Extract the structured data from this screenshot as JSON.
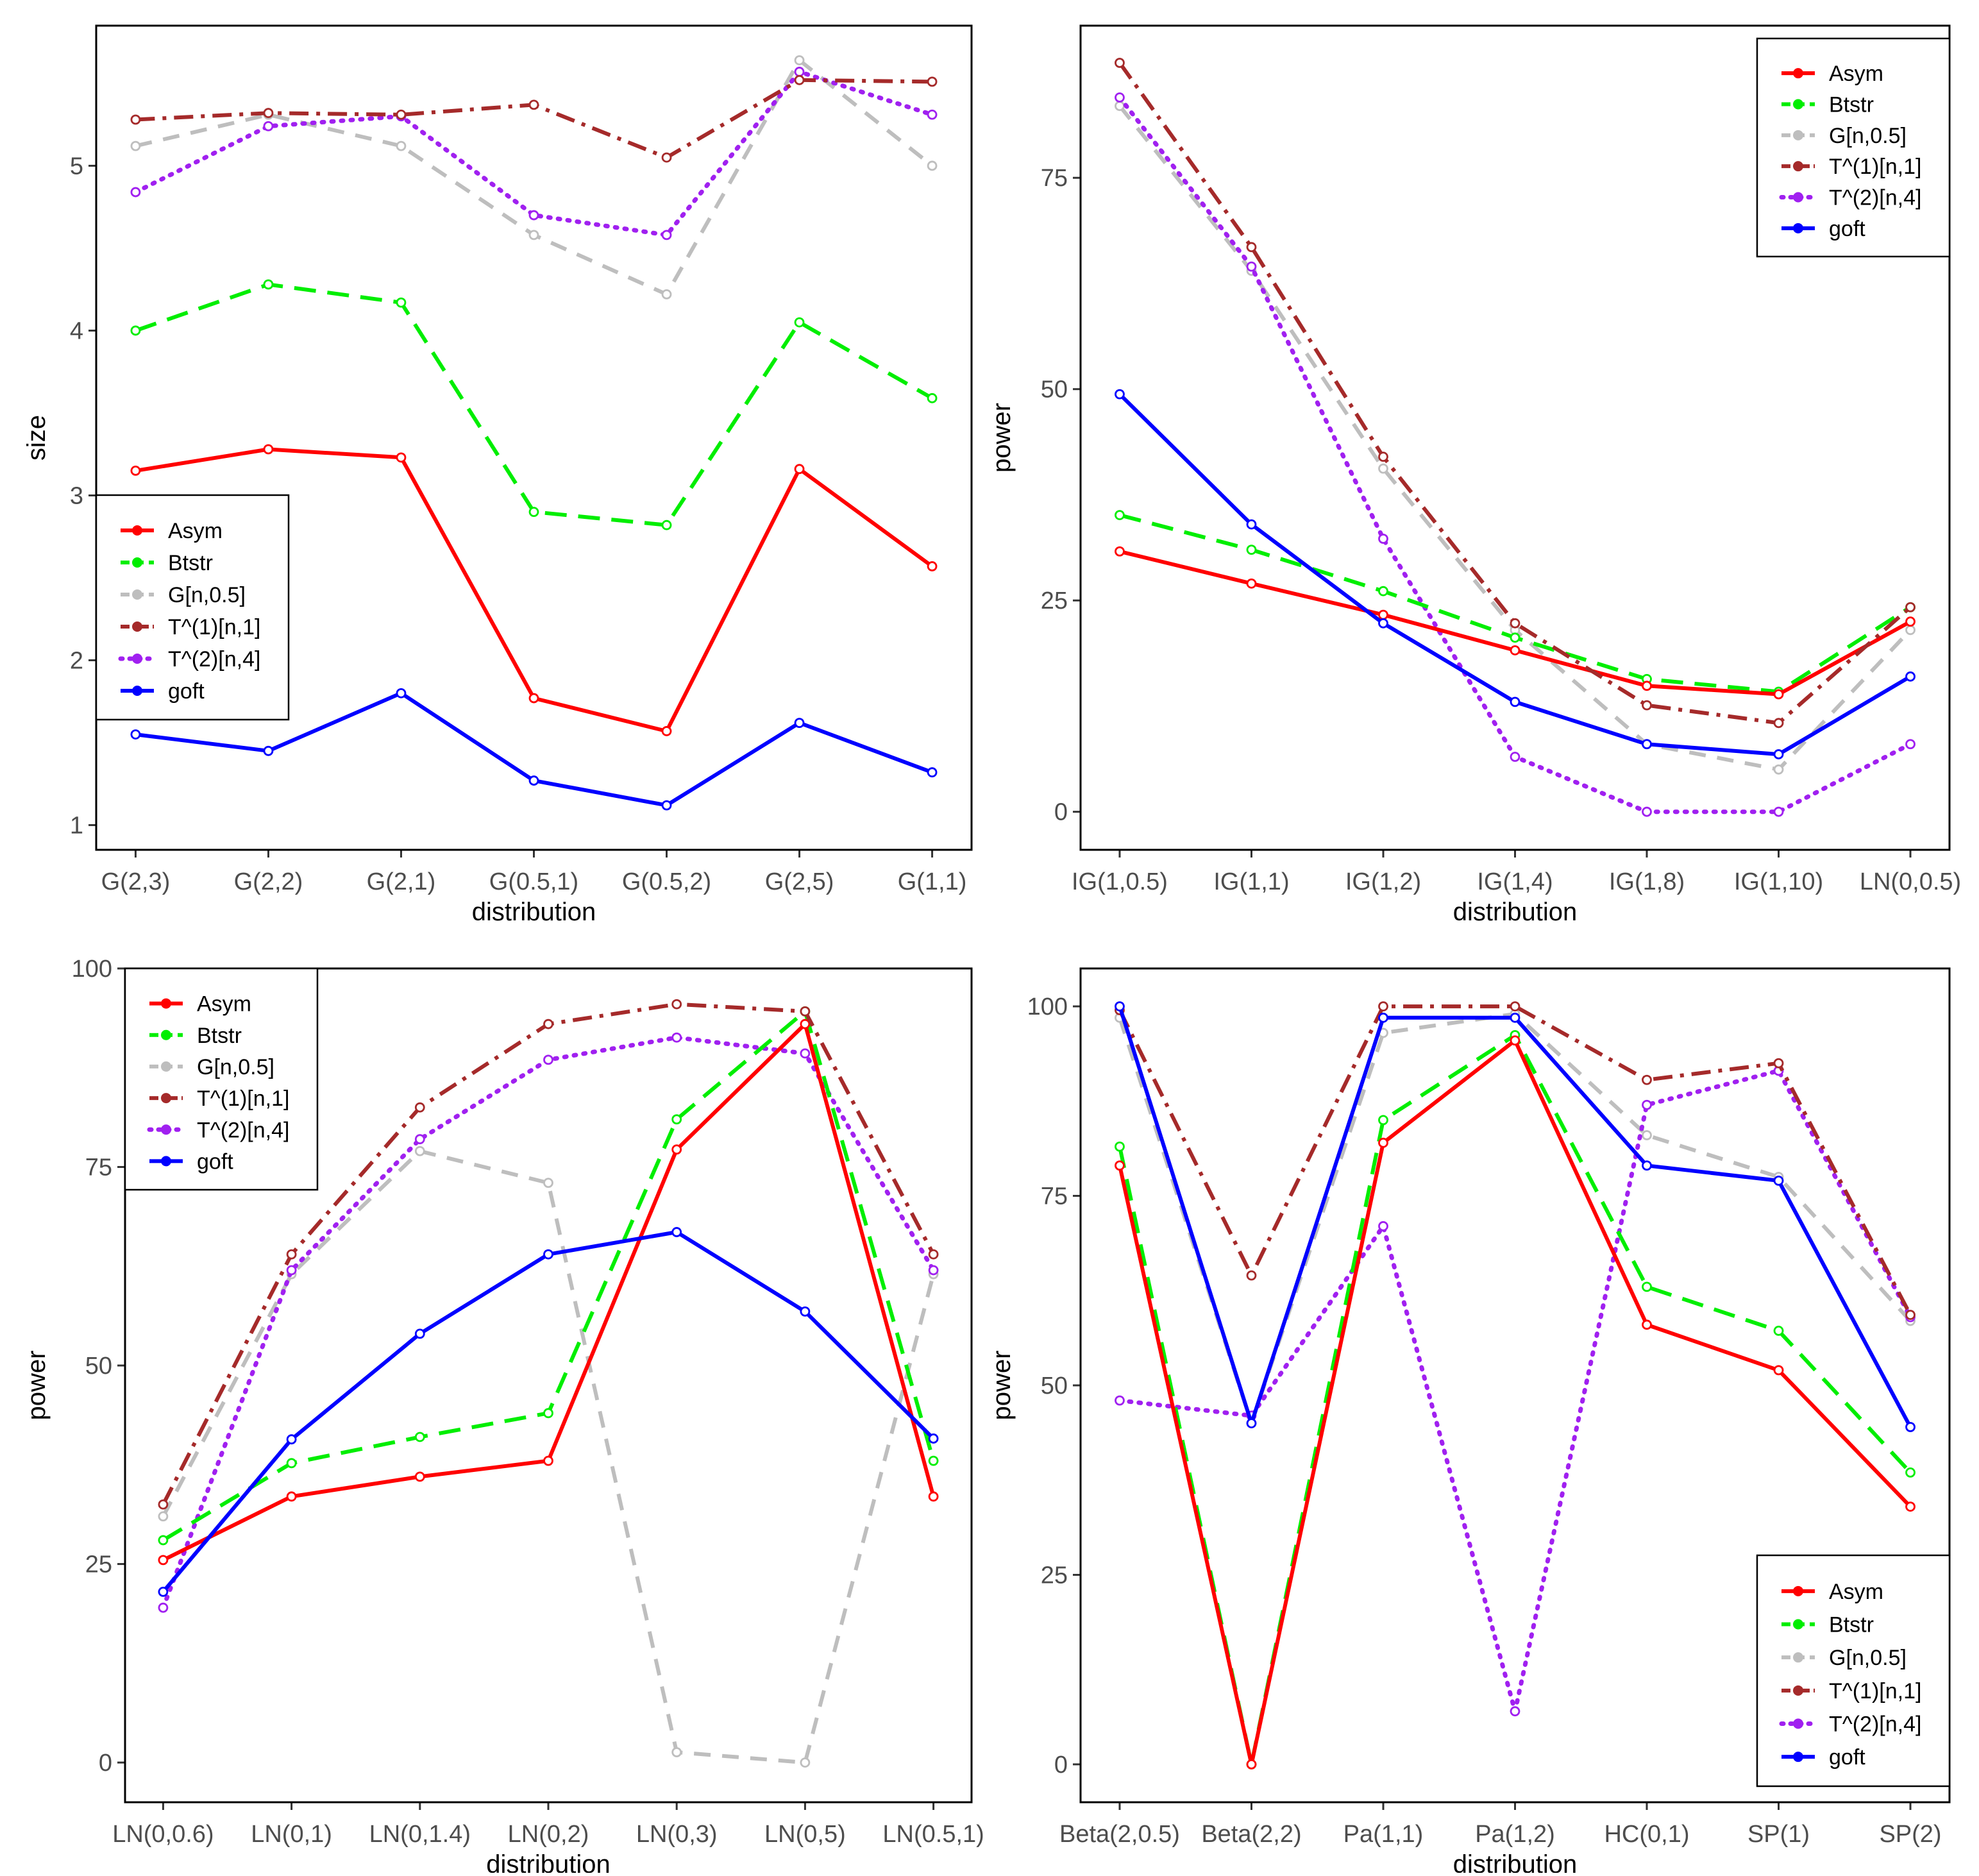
{
  "colors": {
    "Asym": "#ff0000",
    "Btstr": "#00ee00",
    "G[n,0.5]": "#bebebe",
    "T^(1)[n,1]": "#a52a2a",
    "T^(2)[n,4]": "#a020f0",
    "goft": "#0000ff"
  },
  "chart_data": [
    {
      "type": "line",
      "title": "",
      "xlabel": "distribution",
      "ylabel": "size",
      "categories": [
        "G(2,3)",
        "G(2,2)",
        "G(2,1)",
        "G(0.5,1)",
        "G(0.5,2)",
        "G(2,5)",
        "G(1,1)"
      ],
      "ylim": [
        0.85,
        5.85
      ],
      "yticks": [
        1,
        2,
        3,
        4,
        5
      ],
      "legend": "middle-left",
      "series": [
        {
          "name": "Asym",
          "values": [
            3.15,
            3.28,
            3.23,
            1.77,
            1.57,
            3.16,
            2.57
          ]
        },
        {
          "name": "Btstr",
          "values": [
            4.0,
            4.28,
            4.17,
            2.9,
            2.82,
            4.05,
            3.59
          ]
        },
        {
          "name": "G[n,0.5]",
          "values": [
            5.12,
            5.31,
            5.12,
            4.58,
            4.22,
            5.64,
            5.0
          ]
        },
        {
          "name": "T^(1)[n,1]",
          "values": [
            5.28,
            5.32,
            5.31,
            5.37,
            5.05,
            5.52,
            5.51
          ]
        },
        {
          "name": "T^(2)[n,4]",
          "values": [
            4.84,
            5.24,
            5.3,
            4.7,
            4.58,
            5.57,
            5.31
          ]
        },
        {
          "name": "goft",
          "values": [
            1.55,
            1.45,
            1.8,
            1.27,
            1.12,
            1.62,
            1.32
          ]
        }
      ]
    },
    {
      "type": "line",
      "title": "",
      "xlabel": "distribution",
      "ylabel": "power",
      "categories": [
        "IG(1,0.5)",
        "IG(1,1)",
        "IG(1,2)",
        "IG(1,4)",
        "IG(1,8)",
        "IG(1,10)",
        "LN(0,0.5)"
      ],
      "ylim": [
        -4.5,
        93
      ],
      "yticks": [
        0,
        25,
        50,
        75
      ],
      "legend": "top-right",
      "series": [
        {
          "name": "Asym",
          "values": [
            30.8,
            27.0,
            23.3,
            19.1,
            14.9,
            13.9,
            22.5
          ]
        },
        {
          "name": "Btstr",
          "values": [
            35.1,
            31.0,
            26.1,
            20.6,
            15.7,
            14.2,
            24.2
          ]
        },
        {
          "name": "G[n,0.5]",
          "values": [
            83.5,
            64.0,
            40.6,
            21.5,
            8.0,
            5.0,
            21.5
          ]
        },
        {
          "name": "T^(1)[n,1]",
          "values": [
            88.6,
            66.8,
            42.0,
            22.3,
            12.6,
            10.5,
            24.2
          ]
        },
        {
          "name": "T^(2)[n,4]",
          "values": [
            84.5,
            64.5,
            32.3,
            6.5,
            0.0,
            0.0,
            8.0
          ]
        },
        {
          "name": "goft",
          "values": [
            49.4,
            34.0,
            22.3,
            13.0,
            8.0,
            6.8,
            16.0
          ]
        }
      ]
    },
    {
      "type": "line",
      "title": "",
      "xlabel": "distribution",
      "ylabel": "power",
      "categories": [
        "LN(0,0.6)",
        "LN(0,1)",
        "LN(0,1.4)",
        "LN(0,2)",
        "LN(0,3)",
        "LN(0,5)",
        "LN(0.5,1)"
      ],
      "ylim": [
        -5,
        100
      ],
      "yticks": [
        0,
        25,
        50,
        75,
        100
      ],
      "legend": "top-left",
      "series": [
        {
          "name": "Asym",
          "values": [
            25.5,
            33.5,
            36.0,
            38.0,
            77.2,
            93.0,
            33.5
          ]
        },
        {
          "name": "Btstr",
          "values": [
            28.0,
            37.7,
            41.0,
            44.0,
            81.0,
            94.6,
            38.0
          ]
        },
        {
          "name": "G[n,0.5]",
          "values": [
            31.0,
            61.5,
            77.0,
            73.0,
            1.3,
            0.0,
            61.5
          ]
        },
        {
          "name": "T^(1)[n,1]",
          "values": [
            32.5,
            64.0,
            82.5,
            93.0,
            95.5,
            94.6,
            64.0
          ]
        },
        {
          "name": "T^(2)[n,4]",
          "values": [
            19.5,
            62.0,
            78.5,
            88.5,
            91.3,
            89.3,
            62.0
          ]
        },
        {
          "name": "goft",
          "values": [
            21.5,
            40.7,
            54.0,
            64.0,
            66.8,
            56.8,
            40.8
          ]
        }
      ]
    },
    {
      "type": "line",
      "title": "",
      "xlabel": "distribution",
      "ylabel": "power",
      "categories": [
        "Beta(2,0.5)",
        "Beta(2,2)",
        "Pa(1,1)",
        "Pa(1,2)",
        "HC(0,1)",
        "SP(1)",
        "SP(2)"
      ],
      "ylim": [
        -5,
        105
      ],
      "yticks": [
        0,
        25,
        50,
        75,
        100
      ],
      "legend": "bottom-right",
      "series": [
        {
          "name": "Asym",
          "values": [
            79.0,
            0.0,
            82.0,
            95.5,
            58.0,
            52.0,
            34.0
          ]
        },
        {
          "name": "Btstr",
          "values": [
            81.5,
            0.0,
            85.0,
            96.2,
            63.0,
            57.2,
            38.5
          ]
        },
        {
          "name": "G[n,0.5]",
          "values": [
            98.5,
            45.0,
            96.5,
            99.0,
            83.0,
            77.5,
            58.5
          ]
        },
        {
          "name": "T^(1)[n,1]",
          "values": [
            99.5,
            64.5,
            100.0,
            100.0,
            90.3,
            92.5,
            59.3
          ]
        },
        {
          "name": "T^(2)[n,4]",
          "values": [
            48.0,
            46.0,
            71.0,
            7.0,
            87.0,
            91.5,
            59.0
          ]
        },
        {
          "name": "goft",
          "values": [
            100.0,
            45.0,
            98.5,
            98.5,
            79.0,
            77.0,
            44.5
          ]
        }
      ]
    }
  ]
}
